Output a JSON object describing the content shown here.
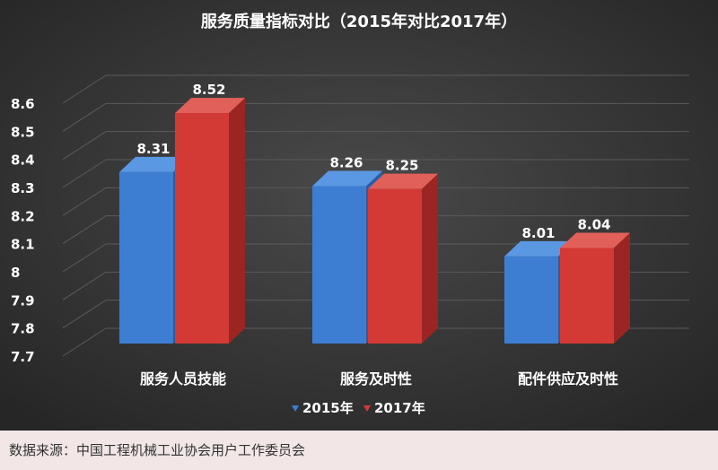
{
  "chart_data": {
    "type": "bar",
    "title": "服务质量指标对比（2015年对比2017年）",
    "categories": [
      "服务人员技能",
      "服务及时性",
      "配件供应及时性"
    ],
    "series": [
      {
        "name": "2015年",
        "values": [
          8.31,
          8.26,
          8.01
        ]
      },
      {
        "name": "2017年",
        "values": [
          8.52,
          8.25,
          8.04
        ]
      }
    ],
    "y_ticks": [
      "8.6",
      "8.5",
      "8.4",
      "8.3",
      "8.2",
      "8.1",
      "8",
      "7.9",
      "7.8",
      "7.7"
    ],
    "ylim": [
      7.7,
      8.6
    ],
    "grid": true,
    "legend_position": "bottom",
    "data_labels": true,
    "chart_style": "3d-columns"
  },
  "colors": {
    "background": "#3a3a3a",
    "series_2015": "#3d7ed3",
    "series_2017": "#d43a35",
    "text": "#ffffff",
    "grid": "#5a5a5a"
  },
  "source": "数据来源：中国工程机械工业协会用户工作委员会"
}
